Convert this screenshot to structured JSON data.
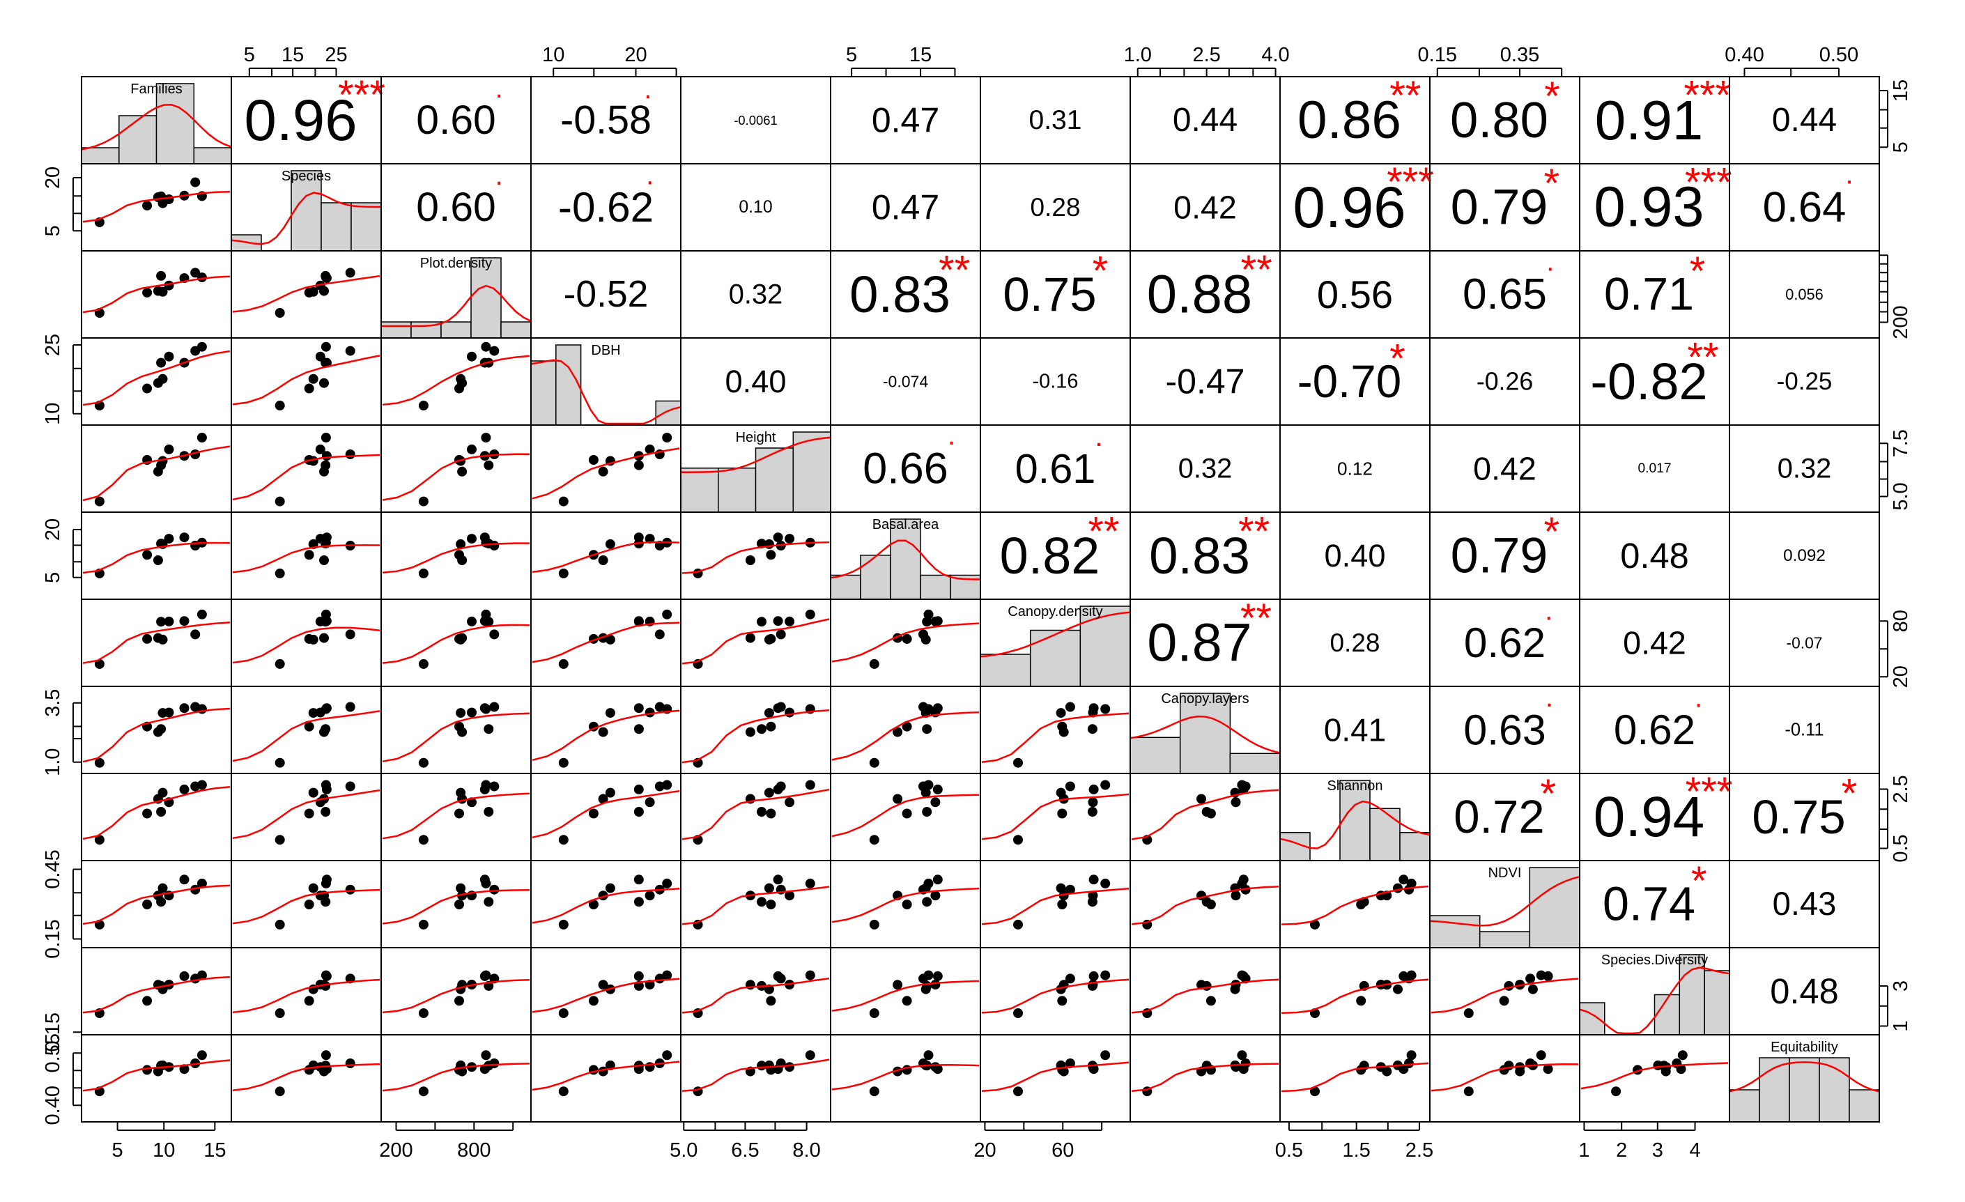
{
  "chart_data": {
    "type": "scatter-matrix",
    "variables": [
      "Families",
      "Species",
      "Plot.density",
      "DBH",
      "Height",
      "Basal.area",
      "Canopy.density",
      "Canopy.layers",
      "Shannon",
      "NDVI",
      "Species.Diversity",
      "Equitability"
    ],
    "correlations": [
      {
        "i": 0,
        "j": 1,
        "text": "0.96",
        "stars": "***"
      },
      {
        "i": 0,
        "j": 2,
        "text": "0.60",
        "stars": "."
      },
      {
        "i": 0,
        "j": 3,
        "text": "-0.58",
        "stars": "."
      },
      {
        "i": 0,
        "j": 4,
        "text": "-0.0061",
        "stars": ""
      },
      {
        "i": 0,
        "j": 5,
        "text": "0.47",
        "stars": ""
      },
      {
        "i": 0,
        "j": 6,
        "text": "0.31",
        "stars": ""
      },
      {
        "i": 0,
        "j": 7,
        "text": "0.44",
        "stars": ""
      },
      {
        "i": 0,
        "j": 8,
        "text": "0.86",
        "stars": "**"
      },
      {
        "i": 0,
        "j": 9,
        "text": "0.80",
        "stars": "*"
      },
      {
        "i": 0,
        "j": 10,
        "text": "0.91",
        "stars": "***"
      },
      {
        "i": 0,
        "j": 11,
        "text": "0.44",
        "stars": ""
      },
      {
        "i": 1,
        "j": 2,
        "text": "0.60",
        "stars": "."
      },
      {
        "i": 1,
        "j": 3,
        "text": "-0.62",
        "stars": "."
      },
      {
        "i": 1,
        "j": 4,
        "text": "0.10",
        "stars": ""
      },
      {
        "i": 1,
        "j": 5,
        "text": "0.47",
        "stars": ""
      },
      {
        "i": 1,
        "j": 6,
        "text": "0.28",
        "stars": ""
      },
      {
        "i": 1,
        "j": 7,
        "text": "0.42",
        "stars": ""
      },
      {
        "i": 1,
        "j": 8,
        "text": "0.96",
        "stars": "***"
      },
      {
        "i": 1,
        "j": 9,
        "text": "0.79",
        "stars": "*"
      },
      {
        "i": 1,
        "j": 10,
        "text": "0.93",
        "stars": "***"
      },
      {
        "i": 1,
        "j": 11,
        "text": "0.64",
        "stars": "."
      },
      {
        "i": 2,
        "j": 3,
        "text": "-0.52",
        "stars": ""
      },
      {
        "i": 2,
        "j": 4,
        "text": "0.32",
        "stars": ""
      },
      {
        "i": 2,
        "j": 5,
        "text": "0.83",
        "stars": "**"
      },
      {
        "i": 2,
        "j": 6,
        "text": "0.75",
        "stars": "*"
      },
      {
        "i": 2,
        "j": 7,
        "text": "0.88",
        "stars": "**"
      },
      {
        "i": 2,
        "j": 8,
        "text": "0.56",
        "stars": ""
      },
      {
        "i": 2,
        "j": 9,
        "text": "0.65",
        "stars": "."
      },
      {
        "i": 2,
        "j": 10,
        "text": "0.71",
        "stars": "*"
      },
      {
        "i": 2,
        "j": 11,
        "text": "0.056",
        "stars": ""
      },
      {
        "i": 3,
        "j": 4,
        "text": "0.40",
        "stars": ""
      },
      {
        "i": 3,
        "j": 5,
        "text": "-0.074",
        "stars": ""
      },
      {
        "i": 3,
        "j": 6,
        "text": "-0.16",
        "stars": ""
      },
      {
        "i": 3,
        "j": 7,
        "text": "-0.47",
        "stars": ""
      },
      {
        "i": 3,
        "j": 8,
        "text": "-0.70",
        "stars": "*"
      },
      {
        "i": 3,
        "j": 9,
        "text": "-0.26",
        "stars": ""
      },
      {
        "i": 3,
        "j": 10,
        "text": "-0.82",
        "stars": "**"
      },
      {
        "i": 3,
        "j": 11,
        "text": "-0.25",
        "stars": ""
      },
      {
        "i": 4,
        "j": 5,
        "text": "0.66",
        "stars": "."
      },
      {
        "i": 4,
        "j": 6,
        "text": "0.61",
        "stars": "."
      },
      {
        "i": 4,
        "j": 7,
        "text": "0.32",
        "stars": ""
      },
      {
        "i": 4,
        "j": 8,
        "text": "0.12",
        "stars": ""
      },
      {
        "i": 4,
        "j": 9,
        "text": "0.42",
        "stars": ""
      },
      {
        "i": 4,
        "j": 10,
        "text": "0.017",
        "stars": ""
      },
      {
        "i": 4,
        "j": 11,
        "text": "0.32",
        "stars": ""
      },
      {
        "i": 5,
        "j": 6,
        "text": "0.82",
        "stars": "**"
      },
      {
        "i": 5,
        "j": 7,
        "text": "0.83",
        "stars": "**"
      },
      {
        "i": 5,
        "j": 8,
        "text": "0.40",
        "stars": ""
      },
      {
        "i": 5,
        "j": 9,
        "text": "0.79",
        "stars": "*"
      },
      {
        "i": 5,
        "j": 10,
        "text": "0.48",
        "stars": ""
      },
      {
        "i": 5,
        "j": 11,
        "text": "0.092",
        "stars": ""
      },
      {
        "i": 6,
        "j": 7,
        "text": "0.87",
        "stars": "**"
      },
      {
        "i": 6,
        "j": 8,
        "text": "0.28",
        "stars": ""
      },
      {
        "i": 6,
        "j": 9,
        "text": "0.62",
        "stars": "."
      },
      {
        "i": 6,
        "j": 10,
        "text": "0.42",
        "stars": ""
      },
      {
        "i": 6,
        "j": 11,
        "text": "-0.07",
        "stars": ""
      },
      {
        "i": 7,
        "j": 8,
        "text": "0.41",
        "stars": ""
      },
      {
        "i": 7,
        "j": 9,
        "text": "0.63",
        "stars": "."
      },
      {
        "i": 7,
        "j": 10,
        "text": "0.62",
        "stars": "."
      },
      {
        "i": 7,
        "j": 11,
        "text": "-0.11",
        "stars": ""
      },
      {
        "i": 8,
        "j": 9,
        "text": "0.72",
        "stars": "*"
      },
      {
        "i": 8,
        "j": 10,
        "text": "0.94",
        "stars": "***"
      },
      {
        "i": 8,
        "j": 11,
        "text": "0.75",
        "stars": "*"
      },
      {
        "i": 9,
        "j": 10,
        "text": "0.74",
        "stars": "*"
      },
      {
        "i": 9,
        "j": 11,
        "text": "0.43",
        "stars": ""
      },
      {
        "i": 10,
        "j": 11,
        "text": "0.48",
        "stars": ""
      }
    ],
    "histograms": [
      [
        0.2,
        0.6,
        1.0,
        0.2
      ],
      [
        0.2,
        0.0,
        1.0,
        0.6,
        0.6
      ],
      [
        0.2,
        0.2,
        0.2,
        1.0,
        0.2
      ],
      [
        0.8,
        1.0,
        0.0,
        0.0,
        0.0,
        0.3
      ],
      [
        0.55,
        0.55,
        0.8,
        1.0
      ],
      [
        0.3,
        0.55,
        1.0,
        0.3,
        0.3
      ],
      [
        0.4,
        0.7,
        1.0
      ],
      [
        0.45,
        1.0,
        0.25
      ],
      [
        0.35,
        0.0,
        1.0,
        0.65,
        0.35
      ],
      [
        0.4,
        0.2,
        1.0
      ],
      [
        0.4,
        0.0,
        0.0,
        0.5,
        1.0,
        0.8
      ],
      [
        0.4,
        0.8,
        0.8,
        0.8,
        0.4
      ]
    ],
    "axes": {
      "top": [
        {
          "col": 1,
          "ticks": [
            {
              "p": 0.12,
              "label": "5"
            },
            {
              "p": 0.41,
              "label": "15"
            },
            {
              "p": 0.7,
              "label": "25"
            }
          ],
          "minor": [
            0.27,
            0.56
          ]
        },
        {
          "col": 3,
          "ticks": [
            {
              "p": 0.15,
              "label": "10"
            },
            {
              "p": 0.7,
              "label": "20"
            }
          ],
          "minor": [
            0.42,
            0.97
          ]
        },
        {
          "col": 5,
          "ticks": [
            {
              "p": 0.14,
              "label": "5"
            },
            {
              "p": 0.6,
              "label": "15"
            }
          ],
          "minor": [
            0.37,
            0.83
          ]
        },
        {
          "col": 7,
          "ticks": [
            {
              "p": 0.05,
              "label": "1.0"
            },
            {
              "p": 0.51,
              "label": "2.5"
            },
            {
              "p": 0.97,
              "label": "4.0"
            }
          ],
          "minor": [
            0.2,
            0.36,
            0.66,
            0.82
          ]
        },
        {
          "col": 9,
          "ticks": [
            {
              "p": 0.05,
              "label": "0.15"
            },
            {
              "p": 0.6,
              "label": "0.35"
            }
          ],
          "minor": [
            0.33,
            0.88
          ]
        },
        {
          "col": 11,
          "ticks": [
            {
              "p": 0.1,
              "label": "0.40"
            },
            {
              "p": 0.73,
              "label": "0.50"
            }
          ],
          "minor": [
            0.41
          ]
        }
      ],
      "bottom": [
        {
          "col": 0,
          "ticks": [
            {
              "p": 0.24,
              "label": "5"
            },
            {
              "p": 0.55,
              "label": "10"
            },
            {
              "p": 0.89,
              "label": "15"
            }
          ],
          "minor": []
        },
        {
          "col": 2,
          "ticks": [
            {
              "p": 0.1,
              "label": "200"
            },
            {
              "p": 0.62,
              "label": "800"
            }
          ],
          "minor": [
            0.36,
            0.88
          ]
        },
        {
          "col": 4,
          "ticks": [
            {
              "p": 0.02,
              "label": "5.0"
            },
            {
              "p": 0.43,
              "label": "6.5"
            },
            {
              "p": 0.84,
              "label": "8.0"
            }
          ],
          "minor": [
            0.23,
            0.63
          ]
        },
        {
          "col": 6,
          "ticks": [
            {
              "p": 0.03,
              "label": "20"
            },
            {
              "p": 0.55,
              "label": "60"
            }
          ],
          "minor": [
            0.29,
            0.81
          ]
        },
        {
          "col": 8,
          "ticks": [
            {
              "p": 0.06,
              "label": "0.5"
            },
            {
              "p": 0.51,
              "label": "1.5"
            },
            {
              "p": 0.93,
              "label": "2.5"
            }
          ],
          "minor": [
            0.28,
            0.72
          ]
        },
        {
          "col": 10,
          "ticks": [
            {
              "p": 0.03,
              "label": "1"
            },
            {
              "p": 0.28,
              "label": "2"
            },
            {
              "p": 0.52,
              "label": "3"
            },
            {
              "p": 0.77,
              "label": "4"
            }
          ],
          "minor": []
        }
      ],
      "left": [
        {
          "row": 1,
          "ticks": [
            {
              "p": 0.16,
              "label": "20"
            },
            {
              "p": 0.77,
              "label": "5"
            }
          ],
          "minor": [
            0.37,
            0.57
          ]
        },
        {
          "row": 3,
          "ticks": [
            {
              "p": 0.08,
              "label": "25"
            },
            {
              "p": 0.87,
              "label": "10"
            }
          ],
          "minor": [
            0.35,
            0.61
          ]
        },
        {
          "row": 5,
          "ticks": [
            {
              "p": 0.2,
              "label": "20"
            },
            {
              "p": 0.75,
              "label": "5"
            }
          ],
          "minor": [
            0.38,
            0.57
          ]
        },
        {
          "row": 7,
          "ticks": [
            {
              "p": 0.19,
              "label": "3.5"
            },
            {
              "p": 0.87,
              "label": "1.0"
            }
          ],
          "minor": [
            0.46,
            0.6
          ]
        },
        {
          "row": 9,
          "ticks": [
            {
              "p": 0.1,
              "label": "0.45"
            },
            {
              "p": 0.9,
              "label": "0.15"
            }
          ],
          "minor": [
            0.37,
            0.63
          ]
        },
        {
          "row": 11,
          "ticks": [
            {
              "p": 0.21,
              "label": "0.55"
            },
            {
              "p": 0.81,
              "label": "0.40"
            }
          ],
          "minor": [
            0.41,
            0.61
          ]
        },
        {
          "row": 10,
          "ticks": [
            {
              "p": 0.97,
              "label": "0.15"
            }
          ],
          "minor": []
        }
      ],
      "right": [
        {
          "row": 0,
          "ticks": [
            {
              "p": 0.16,
              "label": "15"
            },
            {
              "p": 0.81,
              "label": "5"
            }
          ],
          "minor": [
            0.38,
            0.59
          ]
        },
        {
          "row": 2,
          "ticks": [
            {
              "p": 0.82,
              "label": "200"
            }
          ],
          "minor": [
            0.05,
            0.15,
            0.25,
            0.35,
            0.47,
            0.59,
            0.7
          ]
        },
        {
          "row": 4,
          "ticks": [
            {
              "p": 0.21,
              "label": "7.5"
            },
            {
              "p": 0.82,
              "label": "5.0"
            }
          ],
          "minor": [
            0.42,
            0.62
          ]
        },
        {
          "row": 6,
          "ticks": [
            {
              "p": 0.25,
              "label": "80"
            },
            {
              "p": 0.89,
              "label": "20"
            }
          ],
          "minor": [
            0.57
          ]
        },
        {
          "row": 8,
          "ticks": [
            {
              "p": 0.18,
              "label": "2.5"
            },
            {
              "p": 0.86,
              "label": "0.5"
            }
          ],
          "minor": [
            0.41,
            0.64
          ]
        },
        {
          "row": 10,
          "ticks": [
            {
              "p": 0.44,
              "label": "3"
            },
            {
              "p": 0.9,
              "label": "1"
            }
          ],
          "minor": [
            0.67
          ]
        }
      ]
    },
    "point_color": "#000000",
    "fit_color": "#ff0000",
    "hist_fill": "#d3d3d3",
    "stars_color": "#ff0000"
  }
}
